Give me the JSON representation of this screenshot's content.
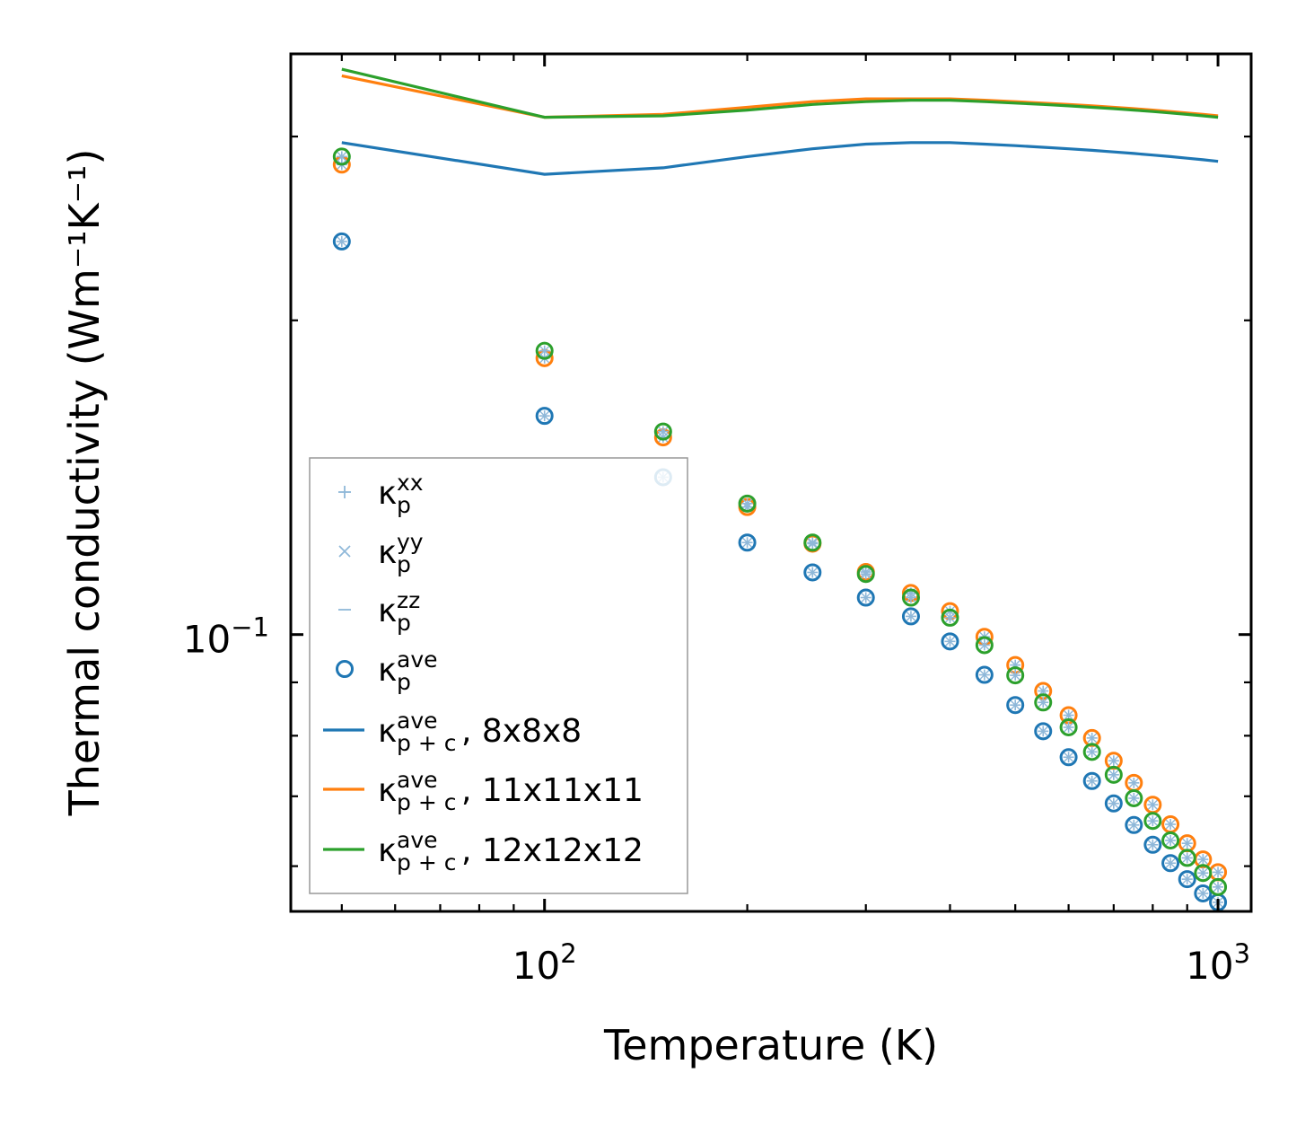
{
  "chart_data": {
    "type": "scatter",
    "xlabel": "Temperature (K)",
    "ylabel": "Thermal conductivity (Wm⁻¹K⁻¹)",
    "xscale": "log",
    "yscale": "log",
    "xlim": [
      42,
      1120
    ],
    "ylim": [
      0.0543,
      0.36
    ],
    "x_tick_labels": [
      {
        "value": 100,
        "base": "10",
        "exp": "2"
      },
      {
        "value": 1000,
        "base": "10",
        "exp": "3"
      }
    ],
    "y_tick_labels": [
      {
        "value": 0.1,
        "base": "10",
        "exp": "−1"
      }
    ],
    "temperatures": [
      50,
      100,
      150,
      200,
      250,
      300,
      350,
      400,
      450,
      500,
      550,
      600,
      650,
      700,
      750,
      800,
      850,
      900,
      950,
      1000
    ],
    "point_series": [
      {
        "name": "κp ave, 8x8x8",
        "color": "#1f77b4",
        "values": [
          0.238,
          0.162,
          0.1415,
          0.1225,
          0.1147,
          0.1085,
          0.1041,
          0.0985,
          0.0915,
          0.0856,
          0.0808,
          0.0763,
          0.0724,
          0.0689,
          0.0657,
          0.0629,
          0.0604,
          0.0583,
          0.0565,
          0.0554
        ]
      },
      {
        "name": "κp ave, 11x11x11",
        "color": "#ff7f0e",
        "values": [
          0.282,
          0.184,
          0.1545,
          0.1325,
          0.1222,
          0.1148,
          0.1096,
          0.1053,
          0.0995,
          0.0935,
          0.0883,
          0.0837,
          0.0796,
          0.0757,
          0.0721,
          0.0687,
          0.0658,
          0.0631,
          0.0609,
          0.0592
        ]
      },
      {
        "name": "κp ave, 12x12x12",
        "color": "#2ca02c",
        "values": [
          0.287,
          0.187,
          0.1565,
          0.1335,
          0.1225,
          0.1143,
          0.1085,
          0.1038,
          0.0977,
          0.0914,
          0.0861,
          0.0815,
          0.0772,
          0.0734,
          0.0697,
          0.0663,
          0.0635,
          0.0611,
          0.0591,
          0.0573
        ]
      }
    ],
    "line_series": [
      {
        "name": "κp+c ave, 8x8x8",
        "color": "#1f77b4",
        "x": [
          50,
          100,
          150,
          200,
          250,
          300,
          350,
          400,
          450,
          500,
          550,
          600,
          650,
          700,
          750,
          800,
          850,
          900,
          950,
          1000
        ],
        "values": [
          0.296,
          0.276,
          0.28,
          0.287,
          0.292,
          0.295,
          0.296,
          0.296,
          0.295,
          0.294,
          0.293,
          0.292,
          0.291,
          0.29,
          0.289,
          0.288,
          0.287,
          0.286,
          0.285,
          0.284
        ]
      },
      {
        "name": "κp+c ave, 11x11x11",
        "color": "#ff7f0e",
        "x": [
          50,
          100,
          150,
          200,
          250,
          300,
          350,
          400,
          450,
          500,
          550,
          600,
          650,
          700,
          750,
          800,
          850,
          900,
          950,
          1000
        ],
        "values": [
          0.343,
          0.313,
          0.315,
          0.32,
          0.324,
          0.326,
          0.326,
          0.326,
          0.325,
          0.324,
          0.323,
          0.322,
          0.321,
          0.32,
          0.319,
          0.318,
          0.317,
          0.316,
          0.315,
          0.314
        ]
      },
      {
        "name": "κp+c ave, 12x12x12",
        "color": "#2ca02c",
        "x": [
          50,
          100,
          150,
          200,
          250,
          300,
          350,
          400,
          450,
          500,
          550,
          600,
          650,
          700,
          750,
          800,
          850,
          900,
          950,
          1000
        ],
        "values": [
          0.348,
          0.313,
          0.314,
          0.318,
          0.322,
          0.324,
          0.325,
          0.325,
          0.324,
          0.323,
          0.322,
          0.321,
          0.32,
          0.319,
          0.318,
          0.317,
          0.316,
          0.315,
          0.314,
          0.313
        ]
      }
    ],
    "legend": {
      "position": "lower-left",
      "entries": [
        {
          "marker": "plus",
          "color": "#8fb8d9",
          "base": "κ",
          "sub": "p",
          "sup": "xx",
          "suffix": ""
        },
        {
          "marker": "x",
          "color": "#8fb8d9",
          "base": "κ",
          "sub": "p",
          "sup": "yy",
          "suffix": ""
        },
        {
          "marker": "dash",
          "color": "#8fb8d9",
          "base": "κ",
          "sub": "p",
          "sup": "zz",
          "suffix": ""
        },
        {
          "marker": "circle",
          "color": "#1f77b4",
          "base": "κ",
          "sub": "p",
          "sup": "ave",
          "suffix": ""
        },
        {
          "marker": "line",
          "color": "#1f77b4",
          "base": "κ",
          "sub": "p + c",
          "sup": "ave",
          "suffix": ", 8x8x8"
        },
        {
          "marker": "line",
          "color": "#ff7f0e",
          "base": "κ",
          "sub": "p + c",
          "sup": "ave",
          "suffix": ", 11x11x11"
        },
        {
          "marker": "line",
          "color": "#2ca02c",
          "base": "κ",
          "sub": "p + c",
          "sup": "ave",
          "suffix": ", 12x12x12"
        }
      ]
    }
  }
}
